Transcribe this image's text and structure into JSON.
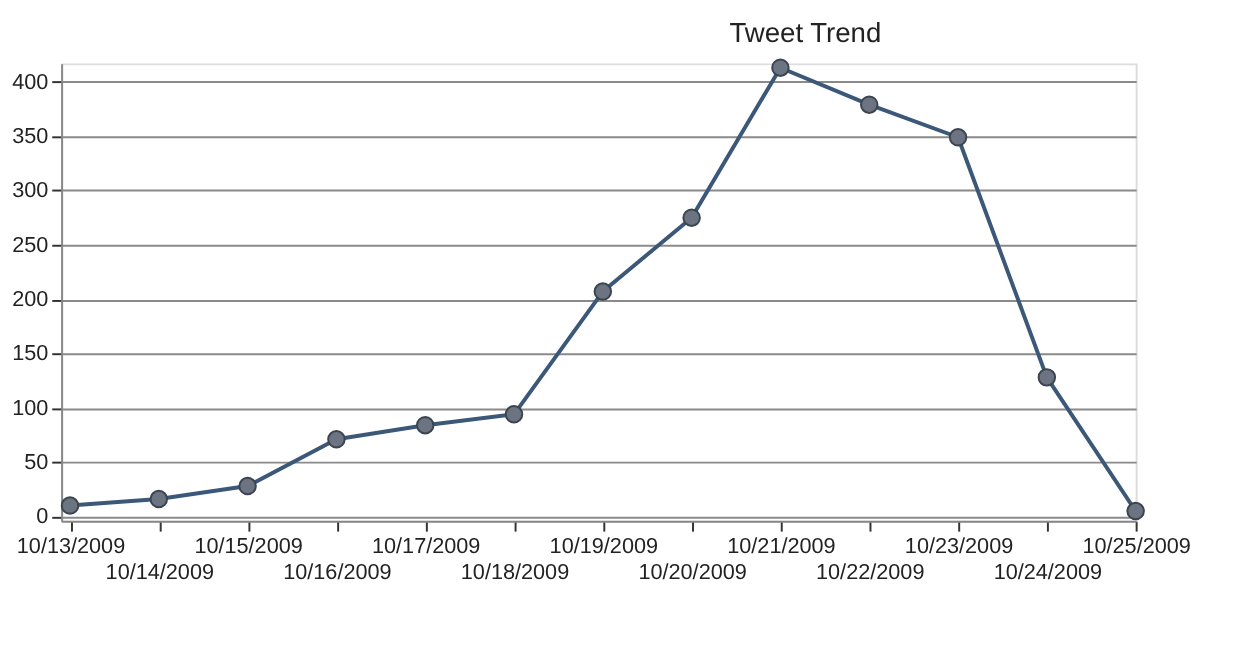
{
  "chart_data": {
    "type": "line",
    "title": "Tweet Trend",
    "categories": [
      "10/13/2009",
      "10/14/2009",
      "10/15/2009",
      "10/16/2009",
      "10/17/2009",
      "10/18/2009",
      "10/19/2009",
      "10/20/2009",
      "10/21/2009",
      "10/22/2009",
      "10/23/2009",
      "10/24/2009",
      "10/25/2009"
    ],
    "series": [
      {
        "color": "#3b5878",
        "values": [
          10,
          16,
          28,
          71,
          84,
          94,
          207,
          275,
          413,
          379,
          349,
          128,
          5
        ]
      }
    ],
    "ylim": [
      -4,
      417
    ],
    "yticks": [
      0,
      50,
      100,
      150,
      200,
      250,
      300,
      350,
      400
    ],
    "grid": "y",
    "marker": "circle",
    "line_style": "solid"
  }
}
